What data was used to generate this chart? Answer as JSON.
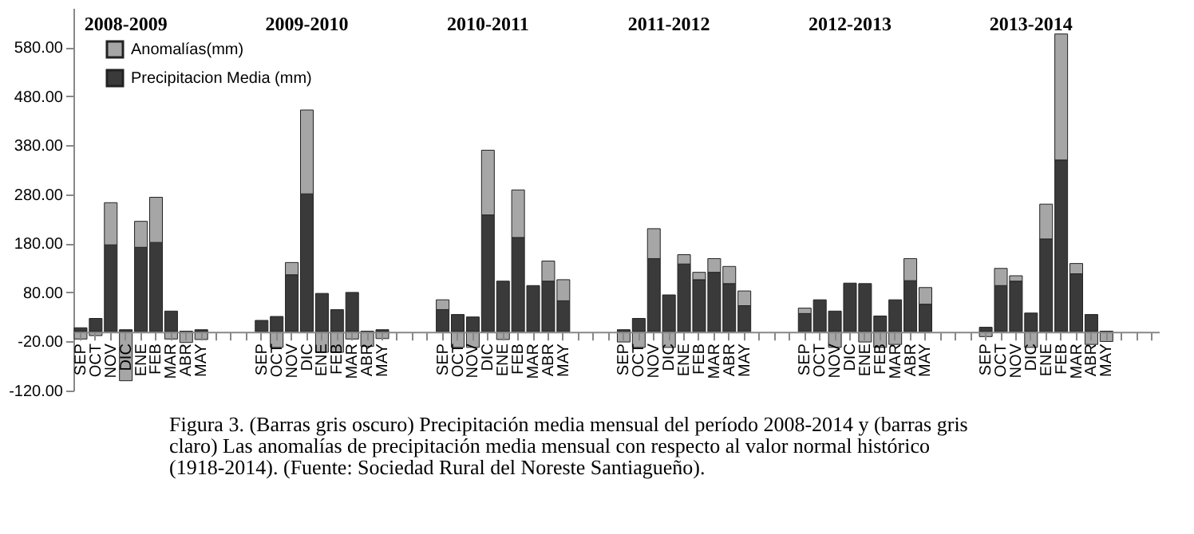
{
  "chart_data": {
    "type": "bar",
    "stacked": true,
    "categories": [
      "SEP",
      "OCT",
      "NOV",
      "DIC",
      "ENE",
      "FEB",
      "MAR",
      "ABR",
      "MAY",
      null,
      null,
      null,
      "SEP",
      "OCT",
      "NOV",
      "DIC",
      "ENE",
      "FEB",
      "MAR",
      "ABR",
      "MAY",
      null,
      null,
      null,
      "SEP",
      "OCT",
      "NOV",
      "DIC",
      "ENE",
      "FEB",
      "MAR",
      "ABR",
      "MAY",
      null,
      null,
      null,
      "SEP",
      "OCT",
      "NOV",
      "DIC",
      "ENE",
      "FEB",
      "MAR",
      "ABR",
      "MAY",
      null,
      null,
      null,
      "SEP",
      "OCT",
      "NOV",
      "DIC",
      "ENE",
      "FEB",
      "MAR",
      "ABR",
      "MAY",
      null,
      null,
      null,
      "SEP",
      "OCT",
      "NOV",
      "DIC",
      "ENE",
      "FEB",
      "MAR",
      "ABR",
      "MAY",
      null,
      null,
      null
    ],
    "series": [
      {
        "name": "Precipitacion Media (mm)",
        "color": "#3a3a3a",
        "values": [
          8,
          27,
          177,
          4,
          172,
          182,
          42,
          1,
          4,
          null,
          null,
          null,
          23,
          31,
          116,
          281,
          78,
          45,
          80,
          1,
          4,
          null,
          null,
          null,
          45,
          35,
          30,
          238,
          103,
          192,
          94,
          103,
          63,
          null,
          null,
          null,
          4,
          27,
          149,
          75,
          138,
          106,
          121,
          98,
          53,
          null,
          null,
          null,
          37,
          65,
          42,
          99,
          98,
          32,
          65,
          104,
          56,
          null,
          null,
          null,
          9,
          94,
          103,
          38,
          189,
          350,
          118,
          35,
          1,
          null,
          null,
          null
        ]
      },
      {
        "name": "Anomalías(mm)",
        "color": "#a6a6a6",
        "values": [
          -15,
          -8,
          86,
          -100,
          53,
          92,
          -15,
          -22,
          -16,
          null,
          null,
          null,
          null,
          -32,
          25,
          171,
          -42,
          -42,
          -15,
          -30,
          -14,
          null,
          null,
          null,
          20,
          -32,
          -32,
          132,
          -16,
          97,
          null,
          41,
          43,
          null,
          null,
          null,
          -21,
          -32,
          61,
          -32,
          19,
          15,
          28,
          35,
          30,
          null,
          null,
          null,
          11,
          null,
          -32,
          null,
          -21,
          -32,
          -26,
          45,
          34,
          null,
          null,
          null,
          -10,
          35,
          11,
          -32,
          71,
          257,
          21,
          -26,
          -20,
          null,
          null,
          null
        ]
      }
    ],
    "ylim": [
      -120,
      660
    ],
    "yticks": [
      {
        "value": -120,
        "label": "-120.00"
      },
      {
        "value": -20,
        "label": "-20.00"
      },
      {
        "value": 80,
        "label": "80.00"
      },
      {
        "value": 180,
        "label": "180.00"
      },
      {
        "value": 280,
        "label": "280.00"
      },
      {
        "value": 380,
        "label": "380.00"
      },
      {
        "value": 480,
        "label": "480.00"
      },
      {
        "value": 580,
        "label": "580.00"
      }
    ],
    "grid": false,
    "legend": "top left",
    "annotations": [
      "2008-2009",
      "2009-2010",
      "2010-2011",
      "2011-2012",
      "2012-2013",
      "2013-2014",
      "Figura 3. (Barras gris oscuro) Precipitación media mensual del período 2008-2014 y (barras gris claro) Las anomalías de precipitación media mensual con respecto al valor normal histórico (1918-2014). (Fuente: Sociedad Rural del Noreste Santiagueño)."
    ]
  }
}
